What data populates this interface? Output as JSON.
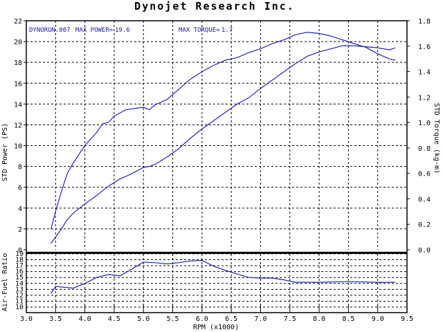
{
  "chart_data": {
    "type": "line",
    "title": "Dynojet  Research  Inc.",
    "run_label": "DYNORUN.007",
    "max_power_label": "MAX POWER=",
    "max_power_value": "19.6",
    "max_torque_label": "MAX TORQUE=",
    "max_torque_value": "1.7",
    "xlabel": "RPM (x1000)",
    "xlim": [
      3.0,
      9.5
    ],
    "xticks": [
      "3.0",
      "3.5",
      "4.0",
      "4.5",
      "5.0",
      "5.5",
      "6.0",
      "6.5",
      "7.0",
      "7.5",
      "8.0",
      "8.5",
      "9.0",
      "9.5"
    ],
    "grid": true,
    "top_plot": {
      "ylabel_left": "STD Power (PS)",
      "ylabel_right": "STD Torque (kg-m)",
      "ylim_left": [
        0,
        22
      ],
      "ylim_right": [
        0,
        1.8
      ],
      "yticks_left": [
        "0",
        "2",
        "4",
        "6",
        "8",
        "10",
        "12",
        "14",
        "16",
        "18",
        "20",
        "22"
      ],
      "yticks_right": [
        "0.0",
        "0.2",
        "0.4",
        "0.6",
        "0.8",
        "1.0",
        "1.2",
        "1.4",
        "1.6",
        "1.8"
      ],
      "series": [
        {
          "axis": "left",
          "x": [
            3.42,
            3.5,
            3.6,
            3.7,
            3.8,
            4.0,
            4.2,
            4.4,
            4.6,
            4.8,
            5.0,
            5.1,
            5.2,
            5.4,
            5.6,
            5.8,
            6.0,
            6.2,
            6.4,
            6.6,
            6.8,
            7.0,
            7.2,
            7.4,
            7.6,
            7.8,
            8.0,
            8.2,
            8.4,
            8.6,
            8.8,
            9.0,
            9.2,
            9.3
          ],
          "y": [
            0.6,
            1.2,
            2.0,
            2.9,
            3.5,
            4.4,
            5.2,
            6.1,
            6.8,
            7.3,
            7.9,
            8.0,
            8.2,
            8.9,
            9.7,
            10.7,
            11.6,
            12.4,
            13.2,
            14.0,
            14.6,
            15.5,
            16.3,
            17.1,
            17.9,
            18.6,
            19.0,
            19.3,
            19.6,
            19.6,
            19.5,
            19.4,
            19.2,
            19.4
          ]
        },
        {
          "axis": "right",
          "x": [
            3.42,
            3.5,
            3.6,
            3.7,
            3.8,
            4.0,
            4.2,
            4.3,
            4.4,
            4.5,
            4.7,
            5.0,
            5.1,
            5.2,
            5.4,
            5.6,
            5.8,
            6.0,
            6.2,
            6.4,
            6.6,
            6.8,
            7.0,
            7.2,
            7.4,
            7.6,
            7.8,
            8.0,
            8.2,
            8.4,
            8.6,
            8.8,
            9.0,
            9.2,
            9.3
          ],
          "y": [
            0.16,
            0.3,
            0.46,
            0.6,
            0.68,
            0.82,
            0.92,
            0.99,
            1.0,
            1.05,
            1.1,
            1.12,
            1.1,
            1.14,
            1.18,
            1.26,
            1.34,
            1.4,
            1.45,
            1.49,
            1.51,
            1.55,
            1.58,
            1.62,
            1.65,
            1.69,
            1.71,
            1.7,
            1.68,
            1.65,
            1.62,
            1.59,
            1.54,
            1.5,
            1.49
          ]
        }
      ]
    },
    "bottom_plot": {
      "ylabel": "Air-Fuel Ratio",
      "ylim": [
        10,
        19
      ],
      "yticks": [
        "10",
        "11",
        "12",
        "13",
        "14",
        "15",
        "16",
        "17",
        "18",
        "19"
      ],
      "series": [
        {
          "x": [
            3.42,
            3.5,
            3.6,
            3.8,
            4.0,
            4.2,
            4.4,
            4.6,
            4.8,
            5.0,
            5.2,
            5.4,
            5.6,
            5.8,
            6.0,
            6.2,
            6.4,
            6.6,
            6.8,
            7.0,
            7.2,
            7.4,
            7.6,
            7.8,
            8.0,
            8.5,
            9.0,
            9.3
          ],
          "y": [
            12.3,
            13.5,
            13.4,
            13.2,
            14.0,
            15.0,
            15.5,
            15.3,
            16.4,
            17.6,
            17.5,
            17.3,
            17.5,
            17.8,
            17.9,
            16.9,
            16.2,
            15.6,
            15.0,
            14.9,
            14.9,
            14.6,
            14.2,
            14.2,
            14.2,
            14.3,
            14.2,
            14.2
          ]
        }
      ]
    }
  }
}
